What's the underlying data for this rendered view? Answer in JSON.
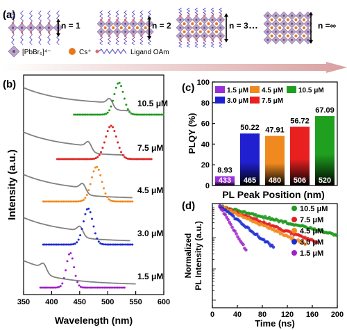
{
  "panels": {
    "a": "(a)",
    "b": "(b)",
    "c": "(c)",
    "d": "(d)"
  },
  "schematic": {
    "n_labels": [
      "n = 1",
      "n = 2",
      "n = 3",
      "n =∞"
    ],
    "ellipsis": "…",
    "legend_octahedron": "[PbBr₆]⁴⁻",
    "legend_cs": "Cs⁺",
    "legend_ligand": "Ligand OAm",
    "colors": {
      "octahedron": "#b9a5c8",
      "octahedron_edge": "#8a6fa3",
      "cs": "#e8781c",
      "ligand_chain": "#4b3bbd",
      "ligand_head": "#e06a6a",
      "gradient_start": "#ffffff",
      "gradient_end": "#d9a0a0"
    }
  },
  "chart_data": [
    {
      "panel": "b",
      "type": "line",
      "title": "",
      "xlabel": "Wavelength (nm)",
      "ylabel": "Intensity (a.u.)",
      "xlim": [
        350,
        600
      ],
      "x_ticks": [
        350,
        400,
        450,
        500,
        550,
        600
      ],
      "series": [
        {
          "name": "10.5 μM",
          "color": "#1f9a1f",
          "pl_peak": 520,
          "pl_fwhm": 20,
          "abs_edge": 508,
          "abs_start": 350,
          "abs_end": 540,
          "pl_start": 440,
          "pl_end": 600
        },
        {
          "name": "7.5 μM",
          "color": "#e0201e",
          "pl_peak": 506,
          "pl_fwhm": 24,
          "abs_edge": 470,
          "abs_start": 350,
          "abs_end": 530,
          "pl_start": 410,
          "pl_end": 580
        },
        {
          "name": "4.5 μM",
          "color": "#f28a1e",
          "pl_peak": 480,
          "pl_fwhm": 22,
          "abs_edge": 460,
          "abs_start": 350,
          "abs_end": 545,
          "pl_start": 385,
          "pl_end": 545
        },
        {
          "name": "3.0 μM",
          "color": "#1c2bd6",
          "pl_peak": 465,
          "pl_fwhm": 20,
          "abs_edge": 455,
          "abs_start": 350,
          "abs_end": 540,
          "pl_start": 385,
          "pl_end": 545
        },
        {
          "name": "1.5 μM",
          "color": "#a020c8",
          "pl_peak": 433,
          "pl_fwhm": 16,
          "abs_edge": 390,
          "abs_start": 350,
          "abs_end": 550,
          "pl_start": 380,
          "pl_end": 530
        }
      ]
    },
    {
      "panel": "c",
      "type": "bar",
      "xlabel": "PL Peak Position (nm)",
      "ylabel": "PLQY (%)",
      "ylim": [
        0,
        100
      ],
      "y_ticks": [
        0,
        20,
        40,
        60,
        80,
        100
      ],
      "categories": [
        "433",
        "465",
        "480",
        "506",
        "520"
      ],
      "values": [
        8.93,
        50.22,
        47.91,
        56.72,
        67.09
      ],
      "value_labels": [
        "8.93",
        "50.22",
        "47.91",
        "56.72",
        "67.09"
      ],
      "colors": [
        "#9b30d9",
        "#2020d0",
        "#f08a20",
        "#e82020",
        "#1fa01f"
      ],
      "legend": [
        "1.5 μM",
        "3.0 μM",
        "4.5 μM",
        "7.5 μM",
        "10.5 μM"
      ]
    },
    {
      "panel": "d",
      "type": "scatter",
      "xlabel": "Time (ns)",
      "ylabel": "Normalized PL Intensity (a.u.)",
      "ylabel_lines": [
        "Normalized",
        "PL Intensity (a.u.)"
      ],
      "xlim": [
        0,
        200
      ],
      "x_ticks": [
        0,
        40,
        80,
        120,
        160,
        200
      ],
      "yscale": "log",
      "series": [
        {
          "name": "10.5 μM",
          "color": "#1f9a1f",
          "tau": 95,
          "t_end": 200
        },
        {
          "name": "7.5 μM",
          "color": "#e0201e",
          "tau": 62,
          "t_end": 170
        },
        {
          "name": "4.5 μM",
          "color": "#f28a1e",
          "tau": 52,
          "t_end": 150
        },
        {
          "name": "3.0 μM",
          "color": "#1c2bd6",
          "tau": 30,
          "t_end": 100
        },
        {
          "name": "1.5 μM",
          "color": "#a020c8",
          "tau": 14,
          "t_end": 55
        }
      ]
    }
  ]
}
